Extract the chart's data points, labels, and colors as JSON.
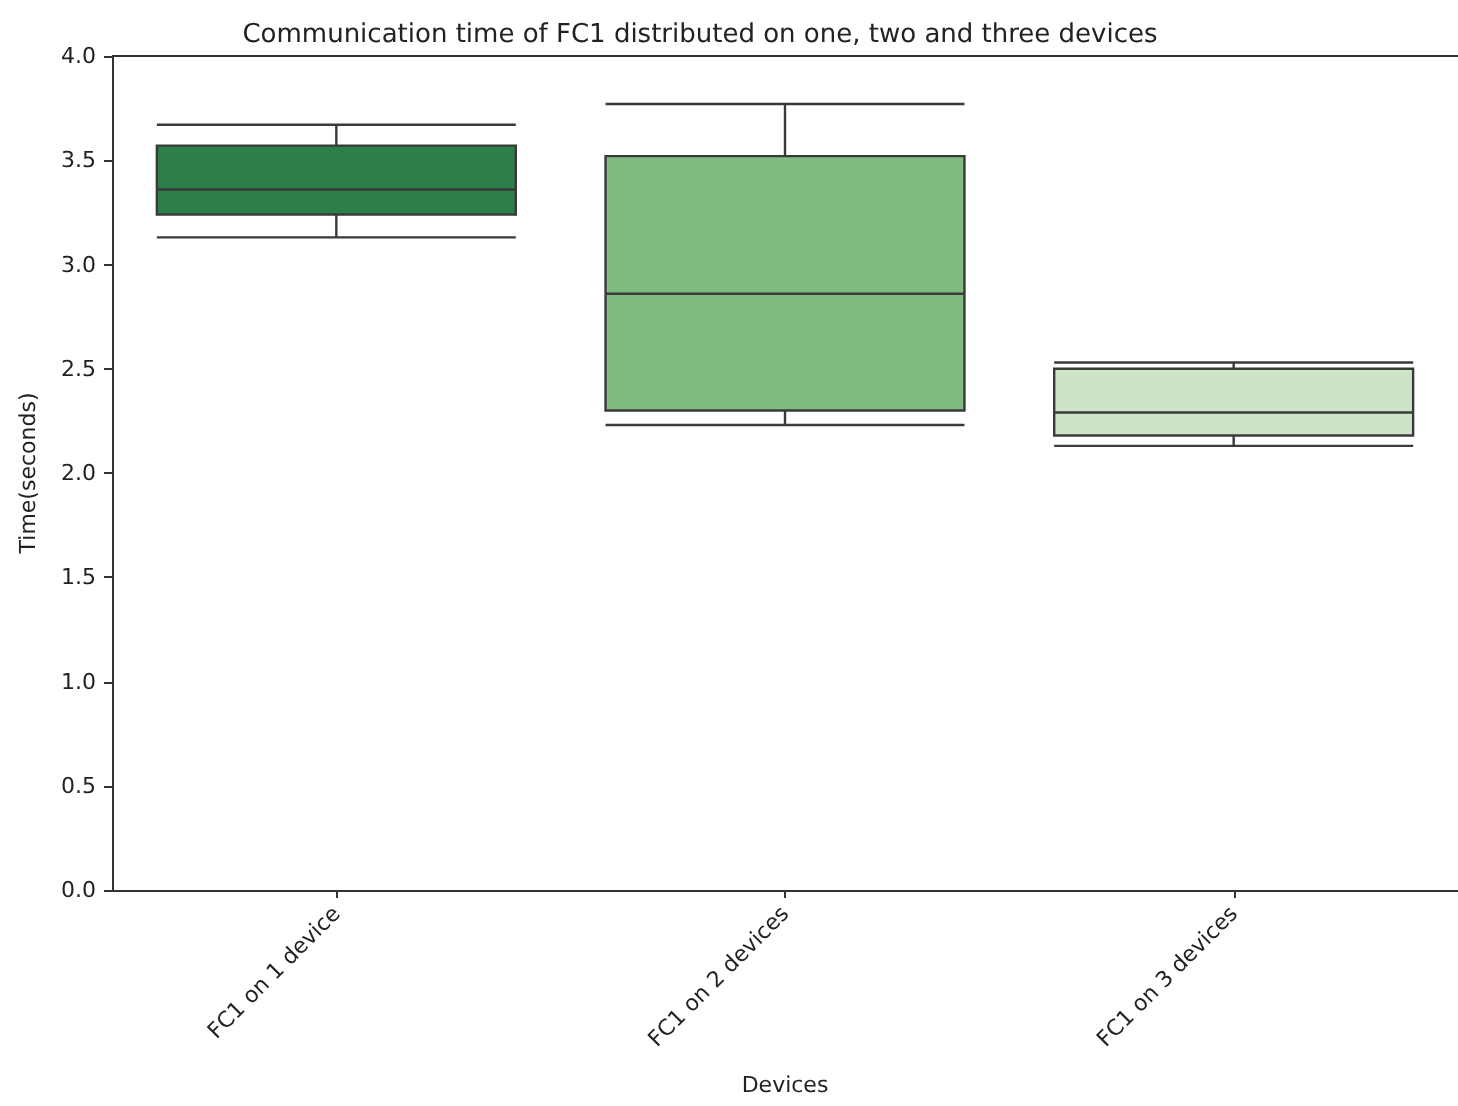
{
  "chart_data": {
    "type": "box",
    "title": "Communication time of FC1 distributed on one, two and three devices",
    "xlabel": "Devices",
    "ylabel": "Time(seconds)",
    "categories": [
      "FC1 on 1 device",
      "FC1 on 2 devices",
      "FC1 on 3 devices"
    ],
    "boxes": [
      {
        "low": 3.13,
        "q1": 3.24,
        "median": 3.36,
        "q3": 3.57,
        "high": 3.67
      },
      {
        "low": 2.23,
        "q1": 2.3,
        "median": 2.86,
        "q3": 3.52,
        "high": 3.77
      },
      {
        "low": 2.13,
        "q1": 2.18,
        "median": 2.29,
        "q3": 2.5,
        "high": 2.53
      }
    ],
    "colors": [
      "#2d7f4a",
      "#80bb7f",
      "#cce5c6"
    ],
    "ylim": [
      0,
      4
    ],
    "yticks": [
      {
        "value": 0,
        "label": "0.0"
      },
      0.5,
      {
        "value": 1,
        "label": "1.0"
      },
      1.5,
      {
        "value": 2,
        "label": "2.0"
      },
      2.5,
      {
        "value": 3,
        "label": "3.0"
      },
      3.5,
      {
        "value": 4,
        "label": "4.0"
      }
    ],
    "grid": false
  }
}
